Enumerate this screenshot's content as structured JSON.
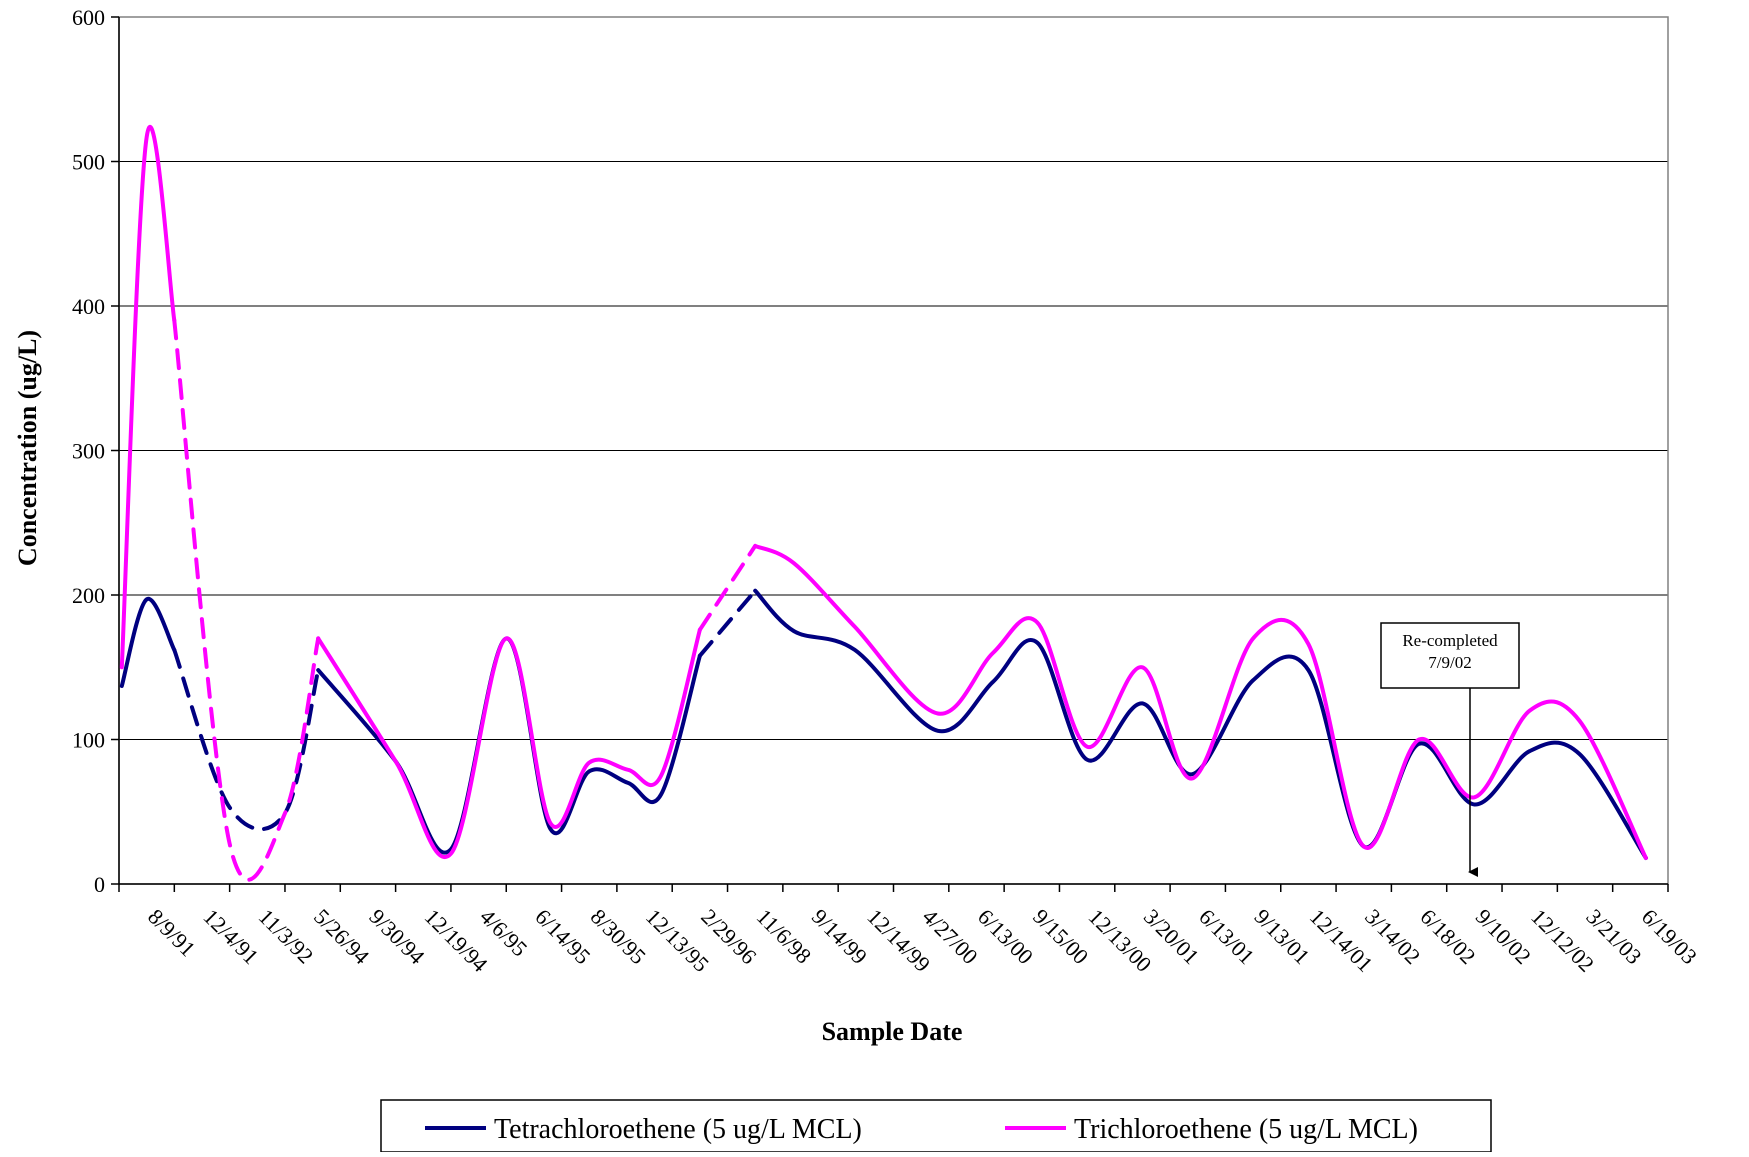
{
  "chart_data": {
    "type": "line",
    "title": "",
    "xlabel": "Sample Date",
    "ylabel": "Concentration (ug/L)",
    "ylim": [
      0,
      600
    ],
    "yticks": [
      0,
      100,
      200,
      300,
      400,
      500,
      600
    ],
    "grid": "horizontal",
    "legend_position": "bottom",
    "categories": [
      "8/9/91",
      "12/4/91",
      "11/3/92",
      "5/26/94",
      "9/30/94",
      "12/19/94",
      "4/6/95",
      "6/14/95",
      "8/30/95",
      "12/13/95",
      "2/29/96",
      "11/6/98",
      "9/14/99",
      "12/14/99",
      "4/27/00",
      "6/13/00",
      "9/15/00",
      "12/13/00",
      "3/20/01",
      "6/13/01",
      "9/13/01",
      "12/14/01",
      "3/14/02",
      "6/18/02",
      "9/10/02",
      "12/12/02",
      "3/21/03",
      "6/19/03"
    ],
    "series": [
      {
        "name": "Tetrachloroethene (5 ug/L MCL)",
        "color": "#000080",
        "points": [
          [
            0.05,
            137
          ],
          [
            0.5,
            197
          ],
          [
            1.0,
            162
          ],
          [
            2.0,
            53
          ],
          [
            3.0,
            49
          ],
          [
            3.6,
            148
          ],
          [
            5.0,
            85
          ],
          [
            6.0,
            24
          ],
          [
            7.0,
            170
          ],
          [
            7.8,
            38
          ],
          [
            8.5,
            78
          ],
          [
            9.2,
            70
          ],
          [
            9.8,
            62
          ],
          [
            10.5,
            158
          ],
          [
            11.5,
            203
          ],
          [
            12.2,
            175
          ],
          [
            13.3,
            162
          ],
          [
            14.8,
            106
          ],
          [
            15.8,
            140
          ],
          [
            16.6,
            167
          ],
          [
            17.5,
            86
          ],
          [
            18.5,
            125
          ],
          [
            19.4,
            76
          ],
          [
            20.5,
            141
          ],
          [
            21.5,
            148
          ],
          [
            22.5,
            26
          ],
          [
            23.5,
            97
          ],
          [
            24.5,
            55
          ],
          [
            25.5,
            92
          ],
          [
            26.4,
            90
          ],
          [
            27.6,
            18
          ]
        ]
      },
      {
        "name": "Trichloroethene (5 ug/L MCL)",
        "color": "#ff00ff",
        "points": [
          [
            0.05,
            150
          ],
          [
            0.5,
            517
          ],
          [
            1.0,
            390
          ],
          [
            2.0,
            28
          ],
          [
            3.0,
            49
          ],
          [
            3.6,
            170
          ],
          [
            5.0,
            85
          ],
          [
            6.0,
            21
          ],
          [
            7.0,
            170
          ],
          [
            7.8,
            42
          ],
          [
            8.5,
            84
          ],
          [
            9.2,
            79
          ],
          [
            9.8,
            75
          ],
          [
            10.5,
            176
          ],
          [
            11.5,
            234
          ],
          [
            12.2,
            222
          ],
          [
            13.3,
            178
          ],
          [
            14.8,
            118
          ],
          [
            15.8,
            160
          ],
          [
            16.6,
            181
          ],
          [
            17.5,
            95
          ],
          [
            18.5,
            150
          ],
          [
            19.4,
            73
          ],
          [
            20.5,
            170
          ],
          [
            21.5,
            166
          ],
          [
            22.5,
            26
          ],
          [
            23.5,
            100
          ],
          [
            24.5,
            60
          ],
          [
            25.5,
            120
          ],
          [
            26.4,
            113
          ],
          [
            27.6,
            18
          ]
        ]
      }
    ],
    "dashed_gaps": [
      [
        1,
        3
      ],
      [
        3,
        4
      ],
      [
        10,
        12
      ]
    ],
    "annotations": [
      {
        "text_lines": [
          "Re-completed",
          "7/9/02"
        ],
        "points_to": "between 6/18/02 and 9/10/02"
      }
    ]
  }
}
